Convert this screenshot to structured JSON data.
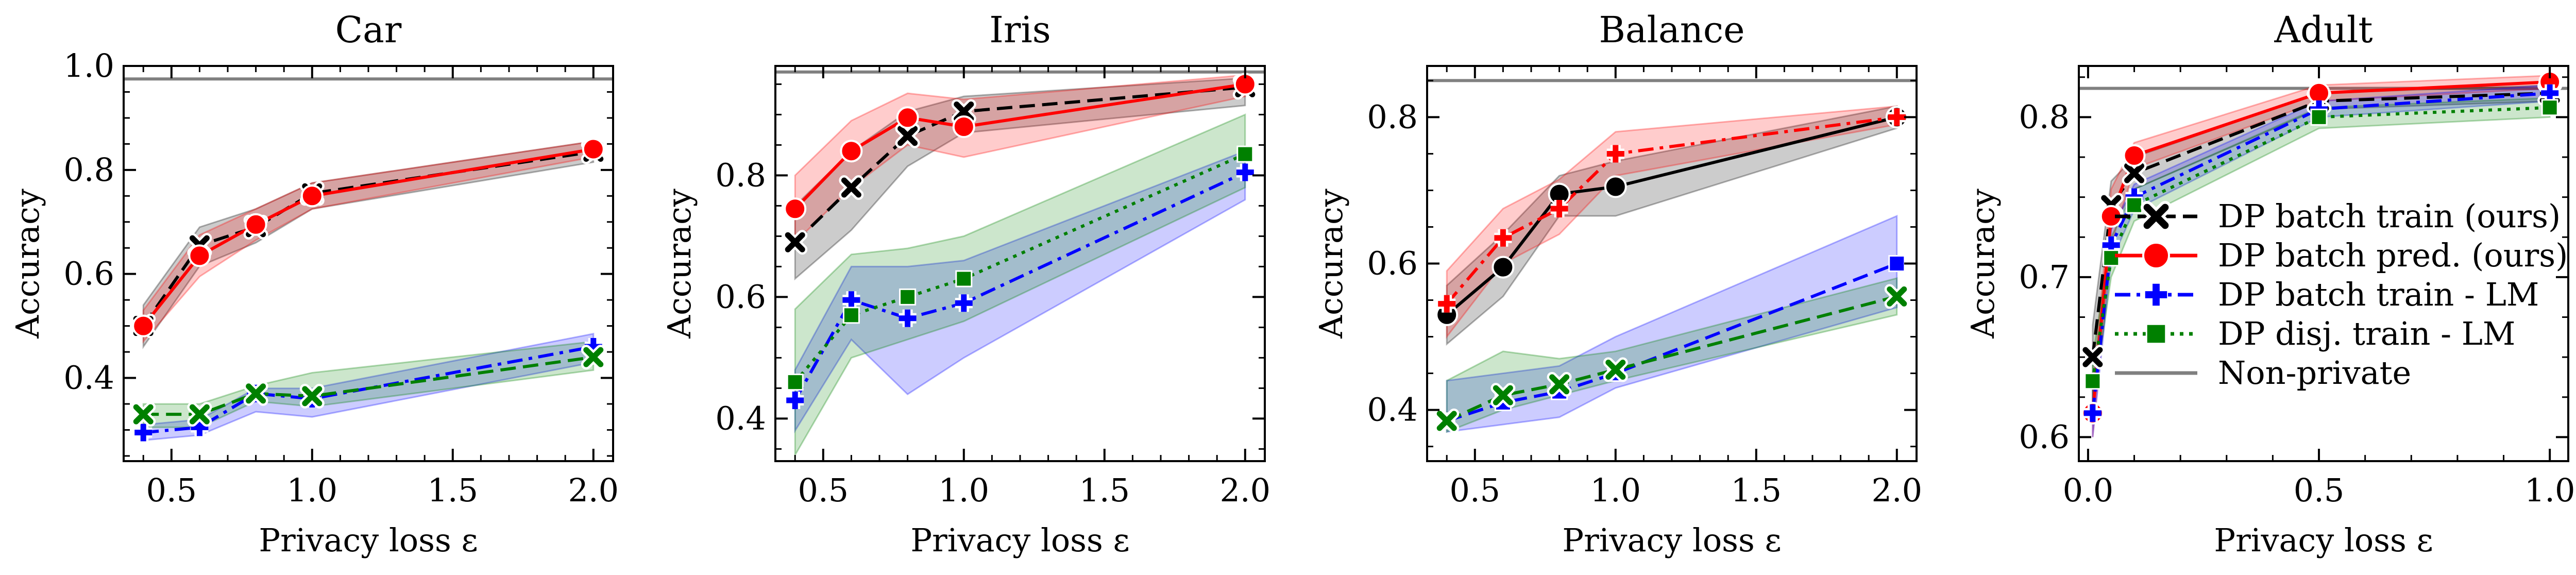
{
  "figure": {
    "xlabel": "Privacy loss ε",
    "ylabel": "Accuracy"
  },
  "legend": {
    "location": "lower-right of Adult panel",
    "entries": [
      {
        "label": "DP batch train (ours)",
        "color": "#000000",
        "marker": "x",
        "dash": "dashed"
      },
      {
        "label": "DP batch pred. (ours)",
        "color": "#ff0000",
        "marker": "circle",
        "dash": "solid"
      },
      {
        "label": "DP batch train - LM",
        "color": "#0000ff",
        "marker": "plus",
        "dash": "dashdot"
      },
      {
        "label": "DP disj. train - LM",
        "color": "#008000",
        "marker": "square",
        "dash": "dotted"
      },
      {
        "label": "Non-private",
        "color": "#808080",
        "marker": "none",
        "dash": "solid"
      }
    ]
  },
  "chart_data": [
    {
      "type": "line",
      "title": "Car",
      "xlabel": "Privacy loss ε",
      "ylabel": "Accuracy",
      "xlim": [
        0.33,
        2.07
      ],
      "ylim": [
        0.24,
        1.0
      ],
      "xticks": [
        0.5,
        1.0,
        1.5,
        2.0
      ],
      "xtick_labels": [
        "0.5",
        "1.0",
        "1.5",
        "2.0"
      ],
      "yticks": [
        0.4,
        0.6,
        0.8,
        1.0
      ],
      "ytick_labels": [
        "0.4",
        "0.6",
        "0.8",
        "1.0"
      ],
      "baseline": 0.975,
      "series": [
        {
          "name": "DP batch train (ours)",
          "x": [
            0.4,
            0.6,
            0.8,
            1.0,
            2.0
          ],
          "y": [
            0.5,
            0.655,
            0.69,
            0.755,
            0.835
          ],
          "lo": [
            0.46,
            0.615,
            0.66,
            0.725,
            0.815
          ],
          "hi": [
            0.54,
            0.69,
            0.725,
            0.775,
            0.855
          ],
          "color": "#000000",
          "marker": "x",
          "dash": "dashed"
        },
        {
          "name": "DP batch pred. (ours)",
          "x": [
            0.4,
            0.6,
            0.8,
            1.0,
            2.0
          ],
          "y": [
            0.5,
            0.635,
            0.695,
            0.75,
            0.84
          ],
          "lo": [
            0.47,
            0.595,
            0.665,
            0.725,
            0.825
          ],
          "hi": [
            0.53,
            0.675,
            0.725,
            0.775,
            0.855
          ],
          "color": "#ff0000",
          "marker": "circle",
          "dash": "solid"
        },
        {
          "name": "DP batch train - LM",
          "x": [
            0.4,
            0.6,
            0.8,
            1.0,
            2.0
          ],
          "y": [
            0.295,
            0.305,
            0.37,
            0.36,
            0.46
          ],
          "lo": [
            0.28,
            0.29,
            0.335,
            0.325,
            0.43
          ],
          "hi": [
            0.31,
            0.32,
            0.38,
            0.38,
            0.485
          ],
          "color": "#0000ff",
          "marker": "plus",
          "dash": "dashdot"
        },
        {
          "name": "DP disj. train - LM",
          "x": [
            0.4,
            0.6,
            0.8,
            1.0,
            2.0
          ],
          "y": [
            0.33,
            0.33,
            0.37,
            0.365,
            0.44
          ],
          "lo": [
            0.305,
            0.305,
            0.355,
            0.345,
            0.415
          ],
          "hi": [
            0.35,
            0.35,
            0.385,
            0.41,
            0.47
          ],
          "color": "#008000",
          "marker": "x",
          "dash": "dashed"
        }
      ]
    },
    {
      "type": "line",
      "title": "Iris",
      "xlabel": "Privacy loss ε",
      "ylabel": "Accuracy",
      "xlim": [
        0.33,
        2.07
      ],
      "ylim": [
        0.33,
        0.98
      ],
      "xticks": [
        0.5,
        1.0,
        1.5,
        2.0
      ],
      "xtick_labels": [
        "0.5",
        "1.0",
        "1.5",
        "2.0"
      ],
      "yticks": [
        0.4,
        0.6,
        0.8
      ],
      "ytick_labels": [
        "0.4",
        "0.6",
        "0.8"
      ],
      "baseline": 0.97,
      "series": [
        {
          "name": "DP batch train (ours)",
          "x": [
            0.4,
            0.6,
            0.8,
            1.0,
            2.0
          ],
          "y": [
            0.69,
            0.78,
            0.865,
            0.905,
            0.945
          ],
          "lo": [
            0.63,
            0.71,
            0.815,
            0.87,
            0.915
          ],
          "hi": [
            0.75,
            0.84,
            0.905,
            0.93,
            0.96
          ],
          "color": "#000000",
          "marker": "x",
          "dash": "dashed"
        },
        {
          "name": "DP batch pred. (ours)",
          "x": [
            0.4,
            0.6,
            0.8,
            1.0,
            2.0
          ],
          "y": [
            0.745,
            0.84,
            0.895,
            0.88,
            0.95
          ],
          "lo": [
            0.69,
            0.78,
            0.85,
            0.83,
            0.93
          ],
          "hi": [
            0.8,
            0.89,
            0.935,
            0.925,
            0.965
          ],
          "color": "#ff0000",
          "marker": "circle",
          "dash": "solid"
        },
        {
          "name": "DP batch train - LM",
          "x": [
            0.4,
            0.6,
            0.8,
            1.0,
            2.0
          ],
          "y": [
            0.43,
            0.595,
            0.565,
            0.59,
            0.805
          ],
          "lo": [
            0.38,
            0.53,
            0.44,
            0.5,
            0.76
          ],
          "hi": [
            0.48,
            0.65,
            0.65,
            0.66,
            0.84
          ],
          "color": "#0000ff",
          "marker": "plus",
          "dash": "dashdot"
        },
        {
          "name": "DP disj. train - LM",
          "x": [
            0.4,
            0.6,
            0.8,
            1.0,
            2.0
          ],
          "y": [
            0.46,
            0.57,
            0.6,
            0.63,
            0.835
          ],
          "lo": [
            0.34,
            0.5,
            0.53,
            0.56,
            0.78
          ],
          "hi": [
            0.58,
            0.67,
            0.68,
            0.7,
            0.9
          ],
          "color": "#008000",
          "marker": "square",
          "dash": "dotted"
        }
      ]
    },
    {
      "type": "line",
      "title": "Balance",
      "xlabel": "Privacy loss ε",
      "ylabel": "Accuracy",
      "xlim": [
        0.33,
        2.07
      ],
      "ylim": [
        0.33,
        0.87
      ],
      "xticks": [
        0.5,
        1.0,
        1.5,
        2.0
      ],
      "xtick_labels": [
        "0.5",
        "1.0",
        "1.5",
        "2.0"
      ],
      "yticks": [
        0.4,
        0.6,
        0.8
      ],
      "ytick_labels": [
        "0.4",
        "0.6",
        "0.8"
      ],
      "baseline": 0.85,
      "series": [
        {
          "name": "DP batch train (ours)",
          "x": [
            0.4,
            0.6,
            0.8,
            1.0,
            2.0
          ],
          "y": [
            0.53,
            0.595,
            0.695,
            0.705,
            0.8
          ],
          "lo": [
            0.49,
            0.555,
            0.665,
            0.665,
            0.785
          ],
          "hi": [
            0.57,
            0.64,
            0.72,
            0.74,
            0.815
          ],
          "color": "#000000",
          "marker": "circle",
          "dash": "solid"
        },
        {
          "name": "DP batch pred. (ours)",
          "x": [
            0.4,
            0.6,
            0.8,
            1.0,
            2.0
          ],
          "y": [
            0.545,
            0.635,
            0.675,
            0.75,
            0.8
          ],
          "lo": [
            0.5,
            0.6,
            0.64,
            0.72,
            0.79
          ],
          "hi": [
            0.59,
            0.675,
            0.715,
            0.78,
            0.815
          ],
          "color": "#ff0000",
          "marker": "plus",
          "dash": "dashdot"
        },
        {
          "name": "DP batch train - LM",
          "x": [
            0.4,
            0.6,
            0.8,
            1.0,
            2.0
          ],
          "y": [
            0.385,
            0.41,
            0.425,
            0.45,
            0.6
          ],
          "lo": [
            0.37,
            0.38,
            0.39,
            0.43,
            0.54
          ],
          "hi": [
            0.44,
            0.45,
            0.46,
            0.5,
            0.665
          ],
          "color": "#0000ff",
          "marker": "square",
          "dash": "dashed"
        },
        {
          "name": "DP disj. train - LM",
          "x": [
            0.4,
            0.6,
            0.8,
            1.0,
            2.0
          ],
          "y": [
            0.385,
            0.42,
            0.435,
            0.455,
            0.555
          ],
          "lo": [
            0.37,
            0.4,
            0.42,
            0.44,
            0.53
          ],
          "hi": [
            0.44,
            0.48,
            0.47,
            0.48,
            0.58
          ],
          "color": "#008000",
          "marker": "x",
          "dash": "dashed"
        }
      ]
    },
    {
      "type": "line",
      "title": "Adult",
      "xlabel": "Privacy loss ε",
      "ylabel": "Accuracy",
      "xlim": [
        -0.02,
        1.04
      ],
      "ylim": [
        0.585,
        0.832
      ],
      "xticks": [
        0.0,
        0.5,
        1.0
      ],
      "xtick_labels": [
        "0.0",
        "0.5",
        "1.0"
      ],
      "yticks": [
        0.6,
        0.7,
        0.8
      ],
      "ytick_labels": [
        "0.6",
        "0.7",
        "0.8"
      ],
      "baseline": 0.818,
      "series": [
        {
          "name": "DP batch train (ours)",
          "x": [
            0.01,
            0.05,
            0.1,
            0.5,
            1.0
          ],
          "y": [
            0.65,
            0.745,
            0.765,
            0.81,
            0.815
          ],
          "lo": [
            0.62,
            0.73,
            0.755,
            0.805,
            0.81
          ],
          "hi": [
            0.67,
            0.76,
            0.775,
            0.815,
            0.82
          ],
          "color": "#000000",
          "marker": "x",
          "dash": "dashed"
        },
        {
          "name": "DP batch pred. (ours)",
          "x": [
            0.01,
            0.05,
            0.1,
            0.5,
            1.0
          ],
          "y": [
            0.615,
            0.738,
            0.776,
            0.815,
            0.822
          ],
          "lo": [
            0.6,
            0.72,
            0.768,
            0.81,
            0.818
          ],
          "hi": [
            0.63,
            0.755,
            0.784,
            0.82,
            0.826
          ],
          "color": "#ff0000",
          "marker": "circle",
          "dash": "solid"
        },
        {
          "name": "DP batch train - LM",
          "x": [
            0.01,
            0.05,
            0.1,
            0.5,
            1.0
          ],
          "y": [
            0.615,
            0.72,
            0.75,
            0.805,
            0.815
          ],
          "lo": [
            0.6,
            0.71,
            0.742,
            0.8,
            0.81
          ],
          "hi": [
            0.63,
            0.73,
            0.758,
            0.81,
            0.82
          ],
          "color": "#0000ff",
          "marker": "plus",
          "dash": "dashdot"
        },
        {
          "name": "DP disj. train - LM",
          "x": [
            0.01,
            0.05,
            0.1,
            0.5,
            1.0
          ],
          "y": [
            0.635,
            0.712,
            0.745,
            0.8,
            0.806
          ],
          "lo": [
            0.62,
            0.7,
            0.735,
            0.793,
            0.8
          ],
          "hi": [
            0.65,
            0.725,
            0.755,
            0.806,
            0.812
          ],
          "color": "#008000",
          "marker": "square",
          "dash": "dotted"
        }
      ]
    }
  ]
}
